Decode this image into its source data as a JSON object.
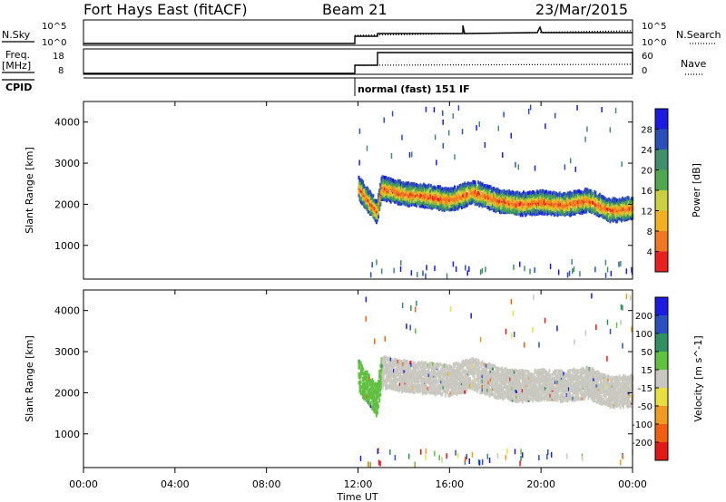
{
  "header": {
    "station": "Fort Hays East (fitACF)",
    "beam": "Beam 21",
    "date": "23/Mar/2015"
  },
  "top_panel": {
    "left_label": "N.Sky",
    "left_ticks": [
      "10^5",
      "10^0"
    ],
    "right_ticks": [
      "10^5",
      "10^0"
    ],
    "right_label": "N.Search",
    "right_label_style": "dotted"
  },
  "freq_panel": {
    "left_label_line1": "Freq.",
    "left_label_line2": "[MHz]",
    "left_ticks": [
      "18",
      "8"
    ],
    "right_ticks": [
      "60",
      "0"
    ],
    "right_label": "Nave",
    "right_label_style": "dotted"
  },
  "cpid_panel": {
    "label": "CPID",
    "mode_text": "normal (fast) 151 IF"
  },
  "x_axis": {
    "label": "Time UT",
    "ticks": [
      "00:00",
      "04:00",
      "08:00",
      "12:00",
      "16:00",
      "20:00",
      "00:00"
    ],
    "range_hours": [
      0,
      24
    ]
  },
  "colors": {
    "power_scale": [
      "#1a1ae0",
      "#2a4fb8",
      "#3f8f6a",
      "#4fa84f",
      "#c8d040",
      "#f0b020",
      "#f07820",
      "#e82020"
    ],
    "velocity_scale": [
      "#1a1ae0",
      "#2a50c0",
      "#2f8f5f",
      "#60c040",
      "#c8c8c0",
      "#e8e040",
      "#f09a20",
      "#f06010",
      "#e01818"
    ]
  },
  "chart_data": [
    {
      "type": "heatmap",
      "title": "",
      "ylabel": "Slant Range [km]",
      "xlabel": "",
      "x_range_hours": [
        0,
        24
      ],
      "ylim": [
        180,
        4500
      ],
      "y_ticks": [
        "4000",
        "3000",
        "2000",
        "1000"
      ],
      "y_tick_values": [
        4000,
        3000,
        2000,
        1000
      ],
      "colorbar": {
        "label": "Power [dB]",
        "ticks": [
          "28",
          "24",
          "20",
          "16",
          "12",
          "8",
          "4"
        ],
        "tick_values": [
          28,
          24,
          20,
          16,
          12,
          8,
          4
        ],
        "range": [
          0,
          32
        ]
      },
      "echo_band": {
        "start_hours": 12.0,
        "end_hours": 24.0,
        "center_range_km": [
          [
            12.0,
            2400
          ],
          [
            12.4,
            2100
          ],
          [
            12.8,
            1800
          ],
          [
            13.0,
            2400
          ],
          [
            14.0,
            2250
          ],
          [
            15.0,
            2200
          ],
          [
            16.0,
            2100
          ],
          [
            17.0,
            2300
          ],
          [
            18.0,
            2100
          ],
          [
            19.0,
            2000
          ],
          [
            20.0,
            2050
          ],
          [
            21.0,
            1980
          ],
          [
            22.0,
            2100
          ],
          [
            23.0,
            1850
          ],
          [
            24.0,
            1900
          ]
        ],
        "half_width_km": 250
      }
    },
    {
      "type": "heatmap",
      "title": "",
      "ylabel": "Slant Range [km]",
      "xlabel": "Time UT",
      "x_range_hours": [
        0,
        24
      ],
      "ylim": [
        180,
        4500
      ],
      "y_ticks": [
        "4000",
        "3000",
        "2000",
        "1000"
      ],
      "y_tick_values": [
        4000,
        3000,
        2000,
        1000
      ],
      "colorbar": {
        "label": "Velocity [m s^-1]",
        "ticks": [
          "200",
          "100",
          "50",
          "15",
          "-15",
          "-50",
          "-100",
          "-200"
        ],
        "tick_values": [
          200,
          100,
          50,
          15,
          -15,
          -50,
          -100,
          -200
        ]
      },
      "echo_band": {
        "start_hours": 12.0,
        "end_hours": 24.0,
        "center_range_km": [
          [
            12.0,
            2400
          ],
          [
            12.4,
            2100
          ],
          [
            12.8,
            1800
          ],
          [
            13.0,
            2500
          ],
          [
            14.0,
            2400
          ],
          [
            15.0,
            2350
          ],
          [
            16.0,
            2300
          ],
          [
            17.0,
            2450
          ],
          [
            18.0,
            2250
          ],
          [
            19.0,
            2150
          ],
          [
            20.0,
            2200
          ],
          [
            21.0,
            2150
          ],
          [
            22.0,
            2250
          ],
          [
            23.0,
            2000
          ],
          [
            24.0,
            2050
          ]
        ],
        "half_width_km": 350
      }
    }
  ]
}
